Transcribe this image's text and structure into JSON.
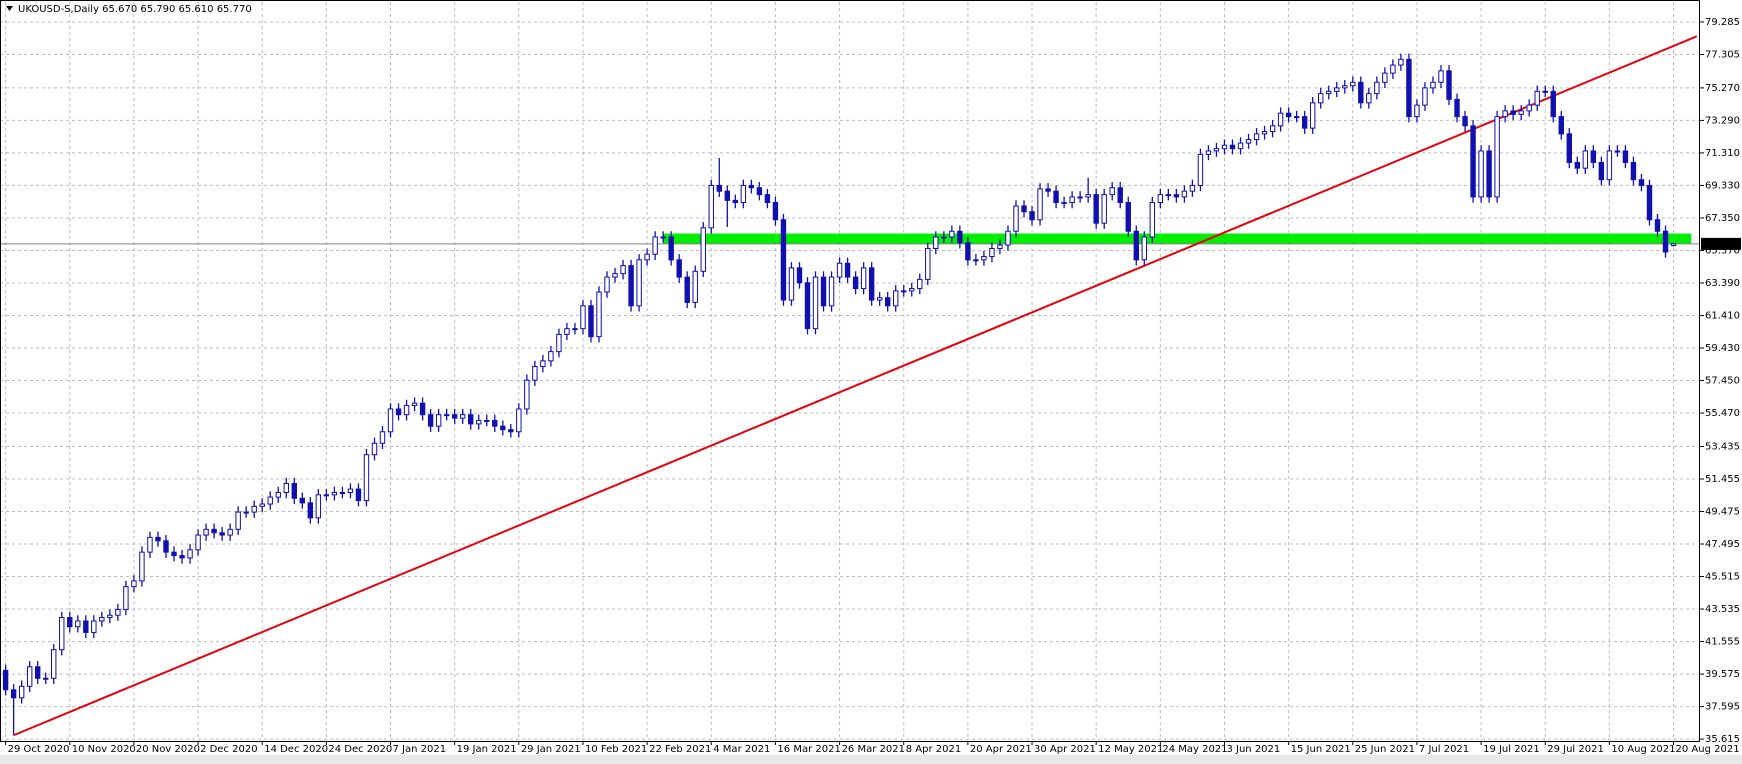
{
  "chart_data": {
    "type": "candlestick",
    "title": "UKOUSD-S,Daily  65.670 65.790 65.610 65.770",
    "color": "#1010b0",
    "bull_fill": "#ffffff",
    "grid": true,
    "ylim": [
      35.5,
      80.5
    ],
    "yticks": [
      79.285,
      77.305,
      {
        "value": 75.27,
        "label": "75.270"
      },
      {
        "value": 73.29,
        "label": "73.290"
      },
      {
        "value": 71.31,
        "label": "71.310"
      },
      {
        "value": 69.33,
        "label": "69.330"
      },
      {
        "value": 67.35,
        "label": "67.350"
      },
      {
        "value": 65.37,
        "label": "65.370"
      },
      {
        "value": 63.39,
        "label": "63.390"
      },
      {
        "value": 61.41,
        "label": "61.410"
      },
      {
        "value": 59.43,
        "label": "59.430"
      },
      {
        "value": 57.45,
        "label": "57.450"
      },
      {
        "value": 55.47,
        "label": "55.470"
      },
      53.435,
      51.455,
      49.475,
      47.495,
      45.515,
      43.535,
      41.555,
      39.575,
      37.595,
      35.615
    ],
    "last_price": {
      "value": 65.77,
      "label": "65.770",
      "color": "#808080"
    },
    "trendline": {
      "x": [
        1,
        210.9
      ],
      "y": [
        35.85,
        78.41
      ],
      "color": "#e8000b"
    },
    "zone": {
      "x": [
        82,
        210.2
      ],
      "ylim": [
        65.77,
        66.4
      ],
      "color": "#00ee00"
    },
    "categories": [
      "29 Oct 2020",
      null,
      null,
      null,
      null,
      null,
      null,
      null,
      "10 Nov 2020",
      null,
      null,
      null,
      null,
      null,
      null,
      null,
      "20 Nov 2020",
      null,
      null,
      null,
      null,
      null,
      null,
      null,
      "2 Dec 2020",
      null,
      null,
      null,
      null,
      null,
      null,
      null,
      "14 Dec 2020",
      null,
      null,
      null,
      null,
      null,
      null,
      null,
      "24 Dec 2020",
      null,
      null,
      null,
      null,
      null,
      null,
      null,
      "7 Jan 2021",
      null,
      null,
      null,
      null,
      null,
      null,
      null,
      "19 Jan 2021",
      null,
      null,
      null,
      null,
      null,
      null,
      null,
      "29 Jan 2021",
      null,
      null,
      null,
      null,
      null,
      null,
      null,
      "10 Feb 2021",
      null,
      null,
      null,
      null,
      null,
      null,
      null,
      "22 Feb 2021",
      null,
      null,
      null,
      null,
      null,
      null,
      null,
      "4 Mar 2021",
      null,
      null,
      null,
      null,
      null,
      null,
      null,
      "16 Mar 2021",
      null,
      null,
      null,
      null,
      null,
      null,
      null,
      "26 Mar 2021",
      null,
      null,
      null,
      null,
      null,
      null,
      null,
      "8 Apr 2021",
      null,
      null,
      null,
      null,
      null,
      null,
      null,
      "20 Apr 2021",
      null,
      null,
      null,
      null,
      null,
      null,
      null,
      "30 Apr 2021",
      null,
      null,
      null,
      null,
      null,
      null,
      null,
      "12 May 2021",
      null,
      null,
      null,
      null,
      null,
      null,
      null,
      "24 May 2021",
      null,
      null,
      null,
      null,
      null,
      null,
      null,
      "3 Jun 2021",
      null,
      null,
      null,
      null,
      null,
      null,
      null,
      "15 Jun 2021",
      null,
      null,
      null,
      null,
      null,
      null,
      null,
      "25 Jun 2021",
      null,
      null,
      null,
      null,
      null,
      null,
      null,
      "7 Jul 2021",
      null,
      null,
      null,
      null,
      null,
      null,
      null,
      "19 Jul 2021",
      null,
      null,
      null,
      null,
      null,
      null,
      null,
      "29 Jul 2021",
      null,
      null,
      null,
      null,
      null,
      null,
      null,
      "10 Aug 2021",
      null,
      null,
      null,
      null,
      null,
      null,
      null,
      "20 Aug 2021"
    ],
    "open": [
      39.8,
      38.62,
      38.13,
      38.83,
      40.02,
      39.32,
      39.32,
      41.06,
      43.02,
      42.46,
      42.81,
      42.11,
      42.81,
      43.02,
      43.16,
      43.51,
      44.9,
      45.25,
      47,
      47.9,
      47.69,
      47,
      46.79,
      46.65,
      47.14,
      48.04,
      48.39,
      48.18,
      48.04,
      48.39,
      49.44,
      49.44,
      49.79,
      49.93,
      50.35,
      50.63,
      51.18,
      50.28,
      50,
      49.09,
      50.49,
      50.49,
      50.63,
      50.63,
      50.84,
      50.14,
      52.93,
      53.63,
      54.33,
      55.72,
      55.37,
      55.93,
      56.07,
      55.37,
      54.67,
      55.37,
      55.37,
      55.16,
      55.37,
      54.81,
      55.02,
      55.02,
      54.67,
      54.46,
      54.33,
      55.72,
      57.47,
      58.3,
      58.65,
      59.21,
      60.26,
      60.61,
      60.61,
      62,
      60.12,
      62.84,
      63.75,
      63.96,
      64.45,
      62,
      64.8,
      65.14,
      66.19,
      66.19,
      64.8,
      63.75,
      62.21,
      64.1,
      66.75,
      69.33,
      68.98,
      68.42,
      68.29,
      69.33,
      69.19,
      68.77,
      68.29,
      67.24,
      62.35,
      64.31,
      63.4,
      60.61,
      63.75,
      62,
      63.75,
      64.59,
      63.75,
      63.05,
      64.31,
      62.35,
      62.49,
      62,
      62.91,
      62.91,
      63.05,
      63.61,
      65.49,
      66.19,
      66.19,
      66.54,
      65.84,
      64.8,
      64.8,
      65,
      65.49,
      65.7,
      66.54,
      68.08,
      67.73,
      67.24,
      69.12,
      68.98,
      68.29,
      68.29,
      68.63,
      68.63,
      68.77,
      67.03,
      68.77,
      69.19,
      68.29,
      66.54,
      64.8,
      66.19,
      68.29,
      68.77,
      68.77,
      68.63,
      68.98,
      69.33,
      71.22,
      71.43,
      71.57,
      71.78,
      71.57,
      71.91,
      72.12,
      72.47,
      72.61,
      72.96,
      73.73,
      73.52,
      73.52,
      72.82,
      74.36,
      74.92,
      75.06,
      75.27,
      75.4,
      75.61,
      74.36,
      74.92,
      75.61,
      76.17,
      76.66,
      77.01,
      73.52,
      74.22,
      75.27,
      75.61,
      76.31,
      74.57,
      73.52,
      72.96,
      68.63,
      71.43,
      68.63,
      73.52,
      73.87,
      73.66,
      73.87,
      74.22,
      75.06,
      75.06,
      73.52,
      72.47,
      70.73,
      70.38,
      71.43,
      70.73,
      69.68,
      71.43,
      71.43,
      70.73,
      69.68,
      69.33,
      67.24,
      66.54,
      65.67
    ],
    "high": [
      40.15,
      38.97,
      39.18,
      40.37,
      40.37,
      39.67,
      41.41,
      43.37,
      43.37,
      43.16,
      43.16,
      43.16,
      43.37,
      43.51,
      43.86,
      45.25,
      45.6,
      47.35,
      48.25,
      48.25,
      48.04,
      47.35,
      47.14,
      47.49,
      48.39,
      48.74,
      48.74,
      48.53,
      48.74,
      49.79,
      49.79,
      50.14,
      50.28,
      50.7,
      50.98,
      51.53,
      51.53,
      50.63,
      50.35,
      50.84,
      50.84,
      50.98,
      50.98,
      51.19,
      51.19,
      53.28,
      53.98,
      54.68,
      56.07,
      56.07,
      56.28,
      56.42,
      56.42,
      55.72,
      55.72,
      55.72,
      55.72,
      55.72,
      55.72,
      55.37,
      55.37,
      55.37,
      55.02,
      54.81,
      56.07,
      57.82,
      58.65,
      59,
      59.56,
      60.61,
      60.96,
      60.96,
      62.35,
      62.35,
      63.19,
      64.1,
      64.31,
      64.8,
      64.8,
      65.15,
      65.49,
      66.54,
      66.54,
      66.54,
      65.15,
      64.1,
      64.45,
      67.1,
      69.68,
      71,
      69.33,
      68.77,
      69.68,
      69.68,
      69.54,
      69.12,
      68.64,
      67.59,
      64.66,
      64.66,
      63.75,
      64.1,
      64.1,
      64.1,
      64.94,
      64.94,
      64.1,
      64.66,
      64.66,
      62.84,
      62.84,
      63.26,
      63.26,
      63.4,
      63.96,
      65.84,
      66.54,
      66.54,
      66.89,
      66.89,
      66.19,
      65.15,
      65.35,
      65.84,
      66.05,
      66.89,
      68.43,
      68.43,
      68.08,
      69.47,
      69.47,
      69.33,
      68.64,
      68.98,
      68.98,
      69.8,
      69.12,
      69.12,
      69.54,
      69.54,
      68.64,
      66.89,
      66.54,
      68.64,
      69.12,
      69.12,
      69.12,
      69.33,
      69.68,
      71.57,
      71.78,
      71.92,
      72.13,
      72.13,
      72.26,
      72.47,
      72.82,
      72.96,
      73.31,
      74.08,
      74.08,
      73.87,
      73.87,
      74.71,
      75.27,
      75.41,
      75.62,
      75.75,
      75.96,
      75.96,
      75.27,
      75.96,
      76.52,
      77.01,
      77.36,
      77.36,
      74.57,
      75.62,
      75.96,
      76.66,
      76.66,
      74.92,
      73.87,
      73.31,
      71.78,
      71.78,
      73.87,
      74.22,
      74.22,
      74.22,
      74.57,
      75.41,
      75.41,
      75.41,
      73.87,
      72.82,
      71.08,
      71.78,
      71.78,
      71.08,
      71.78,
      71.78,
      71.78,
      71.08,
      70.03,
      69.68,
      67.59,
      66.89,
      65.79
    ],
    "low": [
      38.27,
      35.85,
      37.78,
      38.48,
      38.97,
      38.97,
      38.97,
      40.71,
      42.11,
      42.11,
      41.76,
      41.76,
      42.46,
      42.67,
      42.81,
      43.16,
      44.55,
      44.9,
      46.65,
      47.34,
      46.65,
      46.44,
      46.3,
      46.3,
      46.79,
      47.69,
      47.83,
      47.69,
      47.69,
      48.04,
      49.09,
      49.09,
      49.44,
      49.58,
      50,
      50.28,
      49.93,
      49.65,
      48.74,
      48.74,
      50.14,
      50.14,
      50.28,
      50.28,
      49.79,
      49.79,
      52.58,
      53.28,
      53.98,
      55.02,
      55.02,
      55.58,
      55.02,
      54.32,
      54.32,
      55.02,
      54.81,
      54.81,
      54.46,
      54.46,
      54.67,
      54.32,
      54.11,
      53.98,
      53.98,
      55.37,
      57.12,
      57.95,
      58.3,
      58.86,
      59.91,
      60.26,
      60.26,
      59.77,
      59.77,
      62.49,
      63.4,
      63.61,
      61.65,
      61.65,
      64.45,
      64.79,
      65.84,
      64.45,
      63.4,
      61.86,
      61.86,
      63.75,
      66.4,
      68.63,
      66.8,
      67.94,
      67.94,
      68.84,
      68.42,
      67.94,
      66.89,
      62,
      62,
      63.05,
      60.26,
      60.26,
      61.65,
      61.65,
      63.4,
      63.4,
      62.7,
      62.7,
      62,
      62,
      61.65,
      61.65,
      62.56,
      62.56,
      62.7,
      63.26,
      65.14,
      65.84,
      65.84,
      65.49,
      64.45,
      64.45,
      64.45,
      64.65,
      65.14,
      65.35,
      66.19,
      67.38,
      66.89,
      66.89,
      68.63,
      67.94,
      67.94,
      67.94,
      68.28,
      68.28,
      66.68,
      66.68,
      68.42,
      67.94,
      66.19,
      64.45,
      64.45,
      65.84,
      67.94,
      68.42,
      68.28,
      68.28,
      68.63,
      68.98,
      70.87,
      71.08,
      71.22,
      71.22,
      71.22,
      71.56,
      71.77,
      72.12,
      72.26,
      72.61,
      73.17,
      73.17,
      72.47,
      72.47,
      74.01,
      74.57,
      74.71,
      74.92,
      75.05,
      74.01,
      74.01,
      74.57,
      75.26,
      75.82,
      76.31,
      73.17,
      73.17,
      73.87,
      74.92,
      75.26,
      74.22,
      73.17,
      72.61,
      68.28,
      68.28,
      68.28,
      68.28,
      73.17,
      73.31,
      73.31,
      73.52,
      73.87,
      74.71,
      73.17,
      72.12,
      70.38,
      70.03,
      70.03,
      70.38,
      69.33,
      69.33,
      71.08,
      70.38,
      69.33,
      68.98,
      66.89,
      66.19,
      64.93,
      65.61
    ],
    "close": [
      38.62,
      38.13,
      38.83,
      40.02,
      39.32,
      39.32,
      41.06,
      43.02,
      42.46,
      42.81,
      42.11,
      42.81,
      43.02,
      43.16,
      43.51,
      44.9,
      45.25,
      47,
      47.9,
      47.69,
      47,
      46.79,
      46.65,
      47.14,
      48.04,
      48.39,
      48.18,
      48.04,
      48.39,
      49.44,
      49.44,
      49.79,
      49.93,
      50.35,
      50.63,
      51.18,
      50.28,
      50,
      49.09,
      50.49,
      50.49,
      50.63,
      50.63,
      50.84,
      50.14,
      52.93,
      53.63,
      54.33,
      55.72,
      55.37,
      55.93,
      56.07,
      55.37,
      54.67,
      55.37,
      55.37,
      55.16,
      55.37,
      54.81,
      55.02,
      55.02,
      54.67,
      54.46,
      54.33,
      55.72,
      57.47,
      58.3,
      58.65,
      59.21,
      60.26,
      60.61,
      60.61,
      62,
      60.12,
      62.84,
      63.75,
      63.96,
      64.45,
      62,
      64.8,
      65.14,
      66.19,
      66.19,
      64.8,
      63.75,
      62.21,
      64.1,
      66.75,
      69.33,
      68.98,
      68.42,
      68.29,
      69.33,
      69.19,
      68.77,
      68.29,
      67.24,
      62.35,
      64.31,
      63.4,
      60.61,
      63.75,
      62,
      63.75,
      64.59,
      63.75,
      63.05,
      64.31,
      62.35,
      62.49,
      62,
      62.91,
      62.91,
      63.05,
      63.61,
      65.49,
      66.19,
      66.19,
      66.54,
      65.84,
      64.8,
      64.8,
      65,
      65.49,
      65.7,
      66.54,
      68.08,
      67.73,
      67.24,
      69.12,
      68.98,
      68.29,
      68.29,
      68.63,
      68.63,
      68.77,
      67.03,
      68.77,
      69.19,
      68.29,
      66.54,
      64.8,
      66.19,
      68.29,
      68.77,
      68.77,
      68.63,
      68.98,
      69.33,
      71.22,
      71.43,
      71.57,
      71.78,
      71.57,
      71.91,
      72.12,
      72.47,
      72.61,
      72.96,
      73.73,
      73.52,
      73.52,
      72.82,
      74.36,
      74.92,
      75.06,
      75.27,
      75.4,
      75.61,
      74.36,
      74.92,
      75.61,
      76.17,
      76.66,
      77.01,
      73.52,
      74.22,
      75.27,
      75.61,
      76.31,
      74.57,
      73.52,
      72.96,
      68.63,
      71.43,
      68.63,
      73.52,
      73.87,
      73.66,
      73.87,
      74.22,
      75.06,
      75.06,
      73.52,
      72.47,
      70.73,
      70.38,
      71.43,
      70.73,
      69.68,
      71.43,
      71.43,
      70.73,
      69.68,
      69.33,
      67.24,
      66.54,
      65.28,
      65.77
    ]
  }
}
